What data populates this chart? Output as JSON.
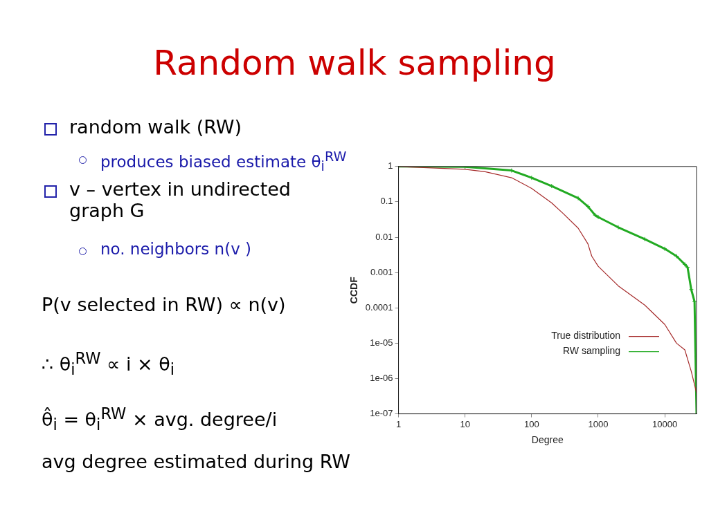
{
  "chart_data": {
    "type": "line",
    "title": "Random walk sampling",
    "xlabel": "Degree",
    "ylabel": "CCDF",
    "annotations": [
      "random walk (RW)",
      "produces biased estimate θ$_{i}$$^{RW}$",
      "v – vertex in undirected graph G",
      "no. neighbors n(v )",
      "P(v  selected in RW) ∝ n(v)",
      "∴     θ$_{i}$$^{RW}$ ∝ i  × θ$_{i}$",
      "θ̂$_{i}$ = θ$_{i}$$^{RW}$ × avg. degree/i",
      "avg degree estimated during RW"
    ],
    "log": "xy",
    "grid": false,
    "legend": "bottom right",
    "line_style": "solid",
    "xlim": [
      1,
      30000
    ],
    "xticks": [
      1,
      10,
      100,
      1000,
      10000
    ],
    "ylim": [
      1e-07,
      1
    ],
    "yticks": [
      1,
      0.1,
      0.01,
      0.001,
      0.0001,
      {
        "value": 1e-05,
        "label": "1e-05"
      },
      {
        "value": 1e-06,
        "label": "1e-06"
      },
      {
        "value": 1e-07,
        "label": "1e-07"
      }
    ],
    "series": [
      {
        "name": "True distribution",
        "color": "#a52a2a",
        "marker": "none",
        "x": [
          1,
          10,
          20,
          50,
          100,
          200,
          300,
          500,
          700,
          800,
          1000,
          2000,
          5000,
          10000,
          15000,
          20000,
          25000,
          30000
        ],
        "values": [
          1,
          0.83,
          0.71,
          0.48,
          0.24,
          0.093,
          0.046,
          0.018,
          0.0065,
          0.0029,
          0.0015,
          0.00042,
          0.00012,
          3.4e-05,
          1e-05,
          6.5e-06,
          1.6e-06,
          3.9e-07
        ]
      },
      {
        "name": "RW sampling",
        "color": "#22aa22",
        "marker": "cross",
        "x": [
          1,
          10,
          50,
          100,
          200,
          500,
          700,
          900,
          1000,
          2000,
          5000,
          10000,
          15000,
          20000,
          22000,
          25000,
          28000,
          30000
        ],
        "values": [
          1,
          0.98,
          0.77,
          0.48,
          0.28,
          0.127,
          0.074,
          0.042,
          0.037,
          0.019,
          0.0088,
          0.0047,
          0.0029,
          0.0017,
          0.0014,
          0.00033,
          0.00015,
          1e-07
        ]
      }
    ]
  }
}
